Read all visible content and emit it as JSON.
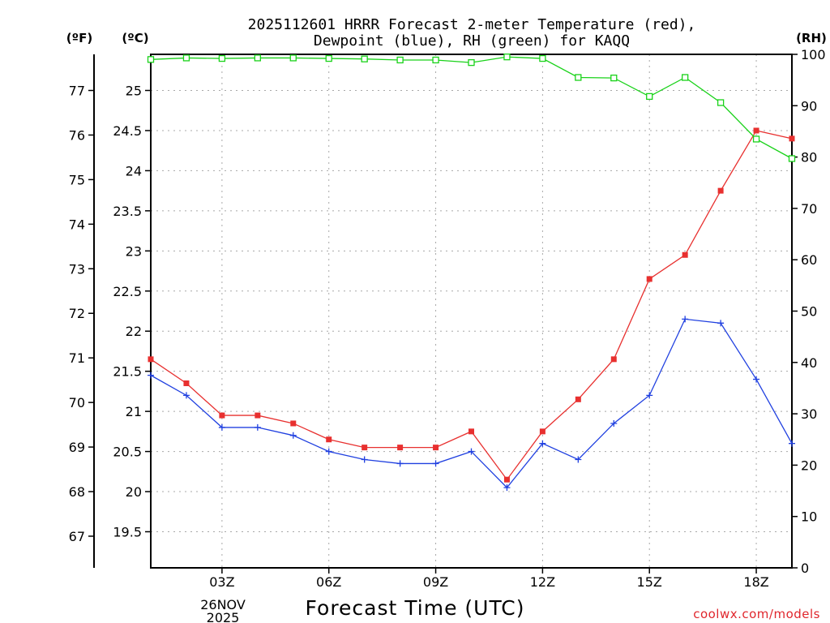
{
  "chart_data": {
    "type": "line",
    "title_line1": "2025112601 HRRR Forecast 2-meter Temperature (red),",
    "title_line2": "Dewpoint (blue), RH (green) for KAQQ",
    "unit_left_outer": "(ºF)",
    "unit_left_inner": "(ºC)",
    "unit_right": "(RH)",
    "xlabel": "Forecast Time (UTC)",
    "credit": "coolwx.com/models",
    "date_label_line1": "26NOV",
    "date_label_line2": "2025",
    "x_hours": [
      1,
      2,
      3,
      4,
      5,
      6,
      7,
      8,
      9,
      10,
      11,
      12,
      13,
      14,
      15,
      16,
      17,
      18,
      19
    ],
    "xlim": [
      1,
      19
    ],
    "x_ticks": [
      {
        "hour": 3,
        "label": "03Z"
      },
      {
        "hour": 6,
        "label": "06Z"
      },
      {
        "hour": 9,
        "label": "09Z"
      },
      {
        "hour": 12,
        "label": "12Z"
      },
      {
        "hour": 15,
        "label": "15Z"
      },
      {
        "hour": 18,
        "label": "18Z"
      }
    ],
    "celsius_axis": {
      "ylim": [
        19.05,
        25.45
      ],
      "ticks": [
        "19.5",
        "20",
        "20.5",
        "21",
        "21.5",
        "22",
        "22.5",
        "23",
        "23.5",
        "24",
        "24.5",
        "25"
      ]
    },
    "fahrenheit_axis": {
      "ticks": [
        "67",
        "68",
        "69",
        "70",
        "71",
        "72",
        "73",
        "74",
        "75",
        "76",
        "77"
      ]
    },
    "rh_axis": {
      "ylim": [
        0,
        100
      ],
      "ticks": [
        "0",
        "10",
        "20",
        "30",
        "40",
        "50",
        "60",
        "70",
        "80",
        "90",
        "100"
      ]
    },
    "series": [
      {
        "name": "Temperature",
        "axis": "celsius",
        "color": "#e8302f",
        "marker": "filled-square",
        "values": [
          21.65,
          21.35,
          20.95,
          20.95,
          20.85,
          20.65,
          20.55,
          20.55,
          20.55,
          20.75,
          20.15,
          20.75,
          21.15,
          21.65,
          22.65,
          22.95,
          23.75,
          24.5,
          24.4
        ]
      },
      {
        "name": "Dewpoint",
        "axis": "celsius",
        "color": "#2040e0",
        "marker": "plus",
        "values": [
          21.45,
          21.2,
          20.8,
          20.8,
          20.7,
          20.5,
          20.4,
          20.35,
          20.35,
          20.5,
          20.05,
          20.6,
          20.4,
          20.85,
          21.2,
          22.15,
          22.1,
          21.4,
          20.6
        ]
      },
      {
        "name": "RH",
        "axis": "rh",
        "color": "#19d219",
        "marker": "open-square",
        "values": [
          99,
          99.3,
          99.2,
          99.3,
          99.3,
          99.2,
          99.1,
          98.9,
          98.9,
          98.4,
          99.5,
          99.2,
          95.5,
          95.4,
          91.8,
          95.5,
          90.6,
          83.5,
          79.7
        ]
      }
    ]
  }
}
